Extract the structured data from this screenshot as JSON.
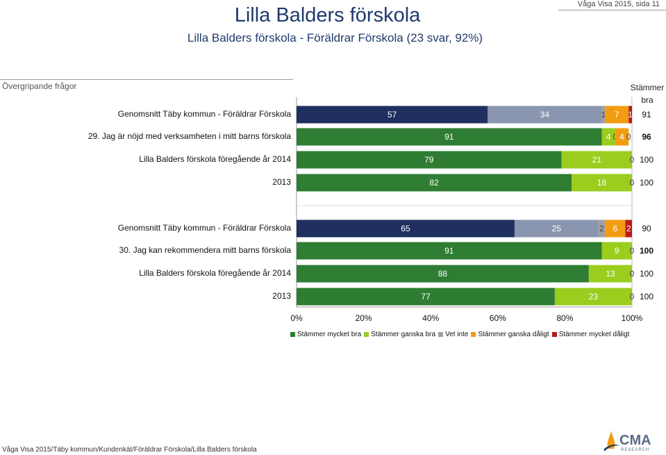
{
  "header": {
    "title": "Lilla Balders förskola",
    "subtitle": "Lilla Balders förskola - Föräldrar Förskola (23 svar, 92%)",
    "page_info": "Våga Visa 2015, sida 11"
  },
  "section": "Övergripande frågor",
  "column_header": "Stämmer bra",
  "footer": "Våga Visa 2015/Täby kommun/Kundenkät/Föräldrar Förskola/Lilla Balders förskola",
  "logo": {
    "text": "CMA",
    "sub": "RESEARCH"
  },
  "colors": {
    "mycket_bra": "#2e7d32",
    "ganska_bra": "#9acd1e",
    "vet_inte": "#a0a0a0",
    "ganska_daligt": "#f39c12",
    "mycket_daligt": "#b71c1c",
    "avg_mycket_bra": "#1f3060",
    "avg_ganska_bra": "#8a96b0"
  },
  "chart_data": {
    "type": "bar",
    "orientation": "horizontal-stacked-100",
    "xlim": [
      0,
      100
    ],
    "xticks": [
      "0%",
      "20%",
      "40%",
      "60%",
      "80%",
      "100%"
    ],
    "legend": [
      {
        "key": "mycket_bra",
        "label": "Stämmer mycket bra"
      },
      {
        "key": "ganska_bra",
        "label": "Stämmer ganska bra"
      },
      {
        "key": "vet_inte",
        "label": "Vet inte"
      },
      {
        "key": "ganska_daligt",
        "label": "Stämmer ganska dåligt"
      },
      {
        "key": "mycket_daligt",
        "label": "Stämmer mycket dåligt"
      }
    ],
    "rows": [
      {
        "label": "Genomsnitt Täby kommun - Föräldrar Förskola",
        "avg": true,
        "values": [
          57,
          34,
          1,
          7,
          1
        ],
        "labels": [
          "57",
          "34",
          "1",
          "7",
          "1"
        ],
        "total": "91"
      },
      {
        "label": "29. Jag är nöjd med verksamheten i mitt barns förskola",
        "question": true,
        "values": [
          91,
          4,
          0,
          4,
          0
        ],
        "labels": [
          "91",
          "4",
          "0",
          "4",
          "0"
        ],
        "total": "96"
      },
      {
        "label": "Lilla Balders förskola föregående år 2014",
        "values": [
          79,
          21,
          0,
          0,
          0
        ],
        "labels": [
          "79",
          "21",
          "0",
          "",
          ""
        ],
        "total": "100"
      },
      {
        "label": "2013",
        "values": [
          82,
          18,
          0,
          0,
          0
        ],
        "labels": [
          "82",
          "18",
          "0",
          "",
          ""
        ],
        "total": "100"
      },
      {
        "label": "Genomsnitt Täby kommun - Föräldrar Förskola",
        "avg": true,
        "values": [
          65,
          25,
          2,
          6,
          2
        ],
        "labels": [
          "65",
          "25",
          "2",
          "6",
          "2"
        ],
        "total": "90"
      },
      {
        "label": "30. Jag kan rekommendera mitt barns förskola",
        "question": true,
        "values": [
          91,
          9,
          0,
          0,
          0
        ],
        "labels": [
          "91",
          "9",
          "0",
          "",
          ""
        ],
        "total": "100"
      },
      {
        "label": "Lilla Balders förskola föregående år 2014",
        "values": [
          88,
          13,
          0,
          0,
          0
        ],
        "labels": [
          "88",
          "13",
          "0",
          "",
          ""
        ],
        "total": "100"
      },
      {
        "label": "2013",
        "values": [
          77,
          23,
          0,
          0,
          0
        ],
        "labels": [
          "77",
          "23",
          "0",
          "",
          ""
        ],
        "total": "100"
      }
    ]
  }
}
